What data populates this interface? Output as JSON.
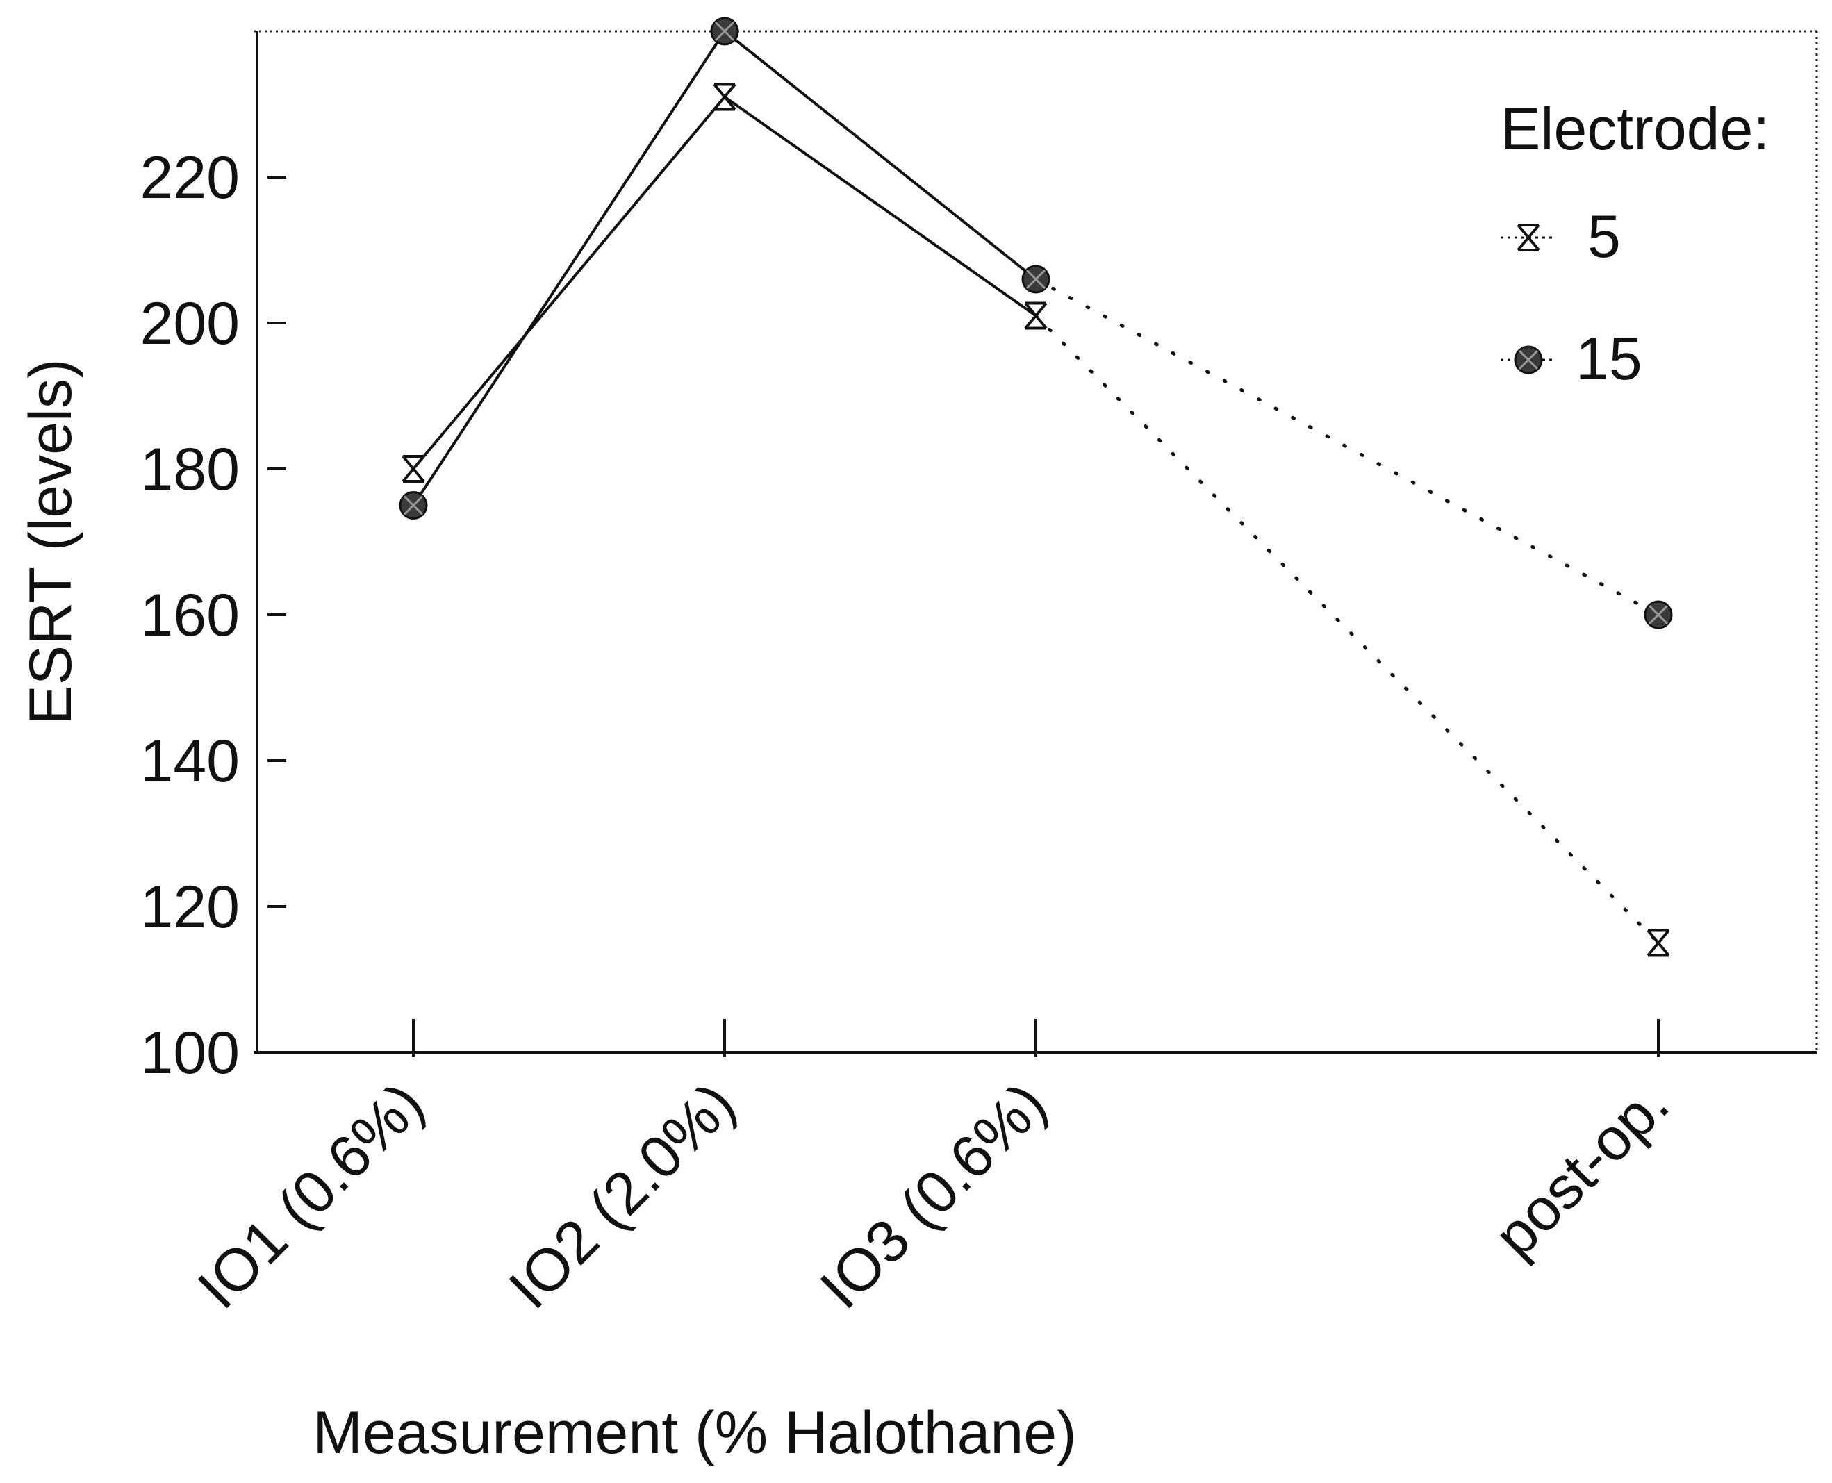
{
  "chart_data": {
    "type": "line",
    "title": "",
    "xlabel": "Measurement (% Halothane)",
    "ylabel": "ESRT (levels)",
    "categories": [
      "IO1 (0.6%)",
      "IO2 (2.0%)",
      "IO3 (0.6%)",
      "post-op."
    ],
    "category_positions": [
      1,
      2,
      3,
      5
    ],
    "ylim": [
      100,
      240
    ],
    "yticks": [
      100,
      120,
      140,
      160,
      180,
      200,
      220
    ],
    "legend": {
      "title": "Electrode:",
      "location": "top-right"
    },
    "series": [
      {
        "name": "5",
        "marker": "x",
        "values": [
          180,
          231,
          201,
          115
        ],
        "dotted_from_index": 2
      },
      {
        "name": "15",
        "marker": "filled-circle",
        "values": [
          175,
          240,
          206,
          160
        ],
        "dotted_from_index": 2
      }
    ],
    "grid": false
  }
}
